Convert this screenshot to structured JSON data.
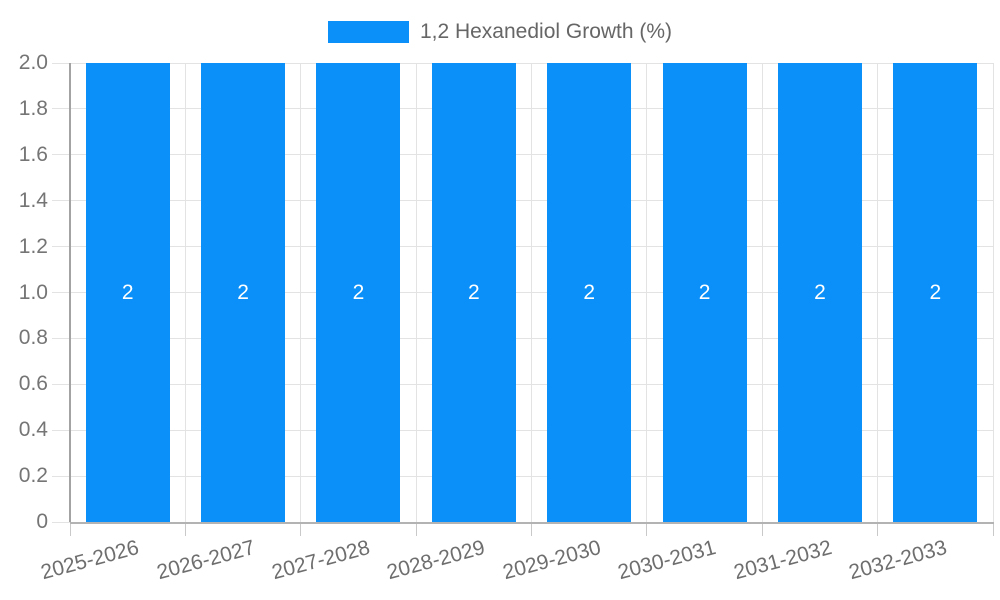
{
  "chart_data": {
    "type": "bar",
    "categories": [
      "2025-2026",
      "2026-2027",
      "2027-2028",
      "2028-2029",
      "2029-2030",
      "2030-2031",
      "2031-2032",
      "2032-2033"
    ],
    "series": [
      {
        "name": "1,2 Hexanediol Growth (%)",
        "values": [
          2,
          2,
          2,
          2,
          2,
          2,
          2,
          2
        ]
      }
    ],
    "bar_value_labels": [
      "2",
      "2",
      "2",
      "2",
      "2",
      "2",
      "2",
      "2"
    ],
    "title": "",
    "xlabel": "",
    "ylabel": "",
    "ylim": [
      0,
      2
    ],
    "ytick_labels": [
      "0",
      "0.2",
      "0.4",
      "0.6",
      "0.8",
      "1.0",
      "1.2",
      "1.4",
      "1.6",
      "1.8",
      "2.0"
    ],
    "grid": true,
    "legend_position": "top",
    "colors": {
      "bar": "#0a90f8",
      "grid": "#e3e3e3",
      "axis_line": "#b3b3b3",
      "y_axis_line": "#a3a3a3",
      "tick_text": "#757575",
      "legend_text": "#666666",
      "value_label": "#ffffff"
    }
  }
}
